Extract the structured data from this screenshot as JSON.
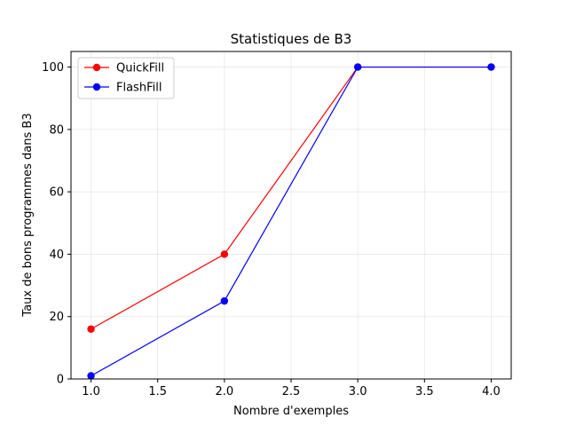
{
  "chart_data": {
    "type": "line",
    "title": "Statistiques de B3",
    "xlabel": "Nombre d'exemples",
    "ylabel": "Taux de bons programmes dans B3",
    "xlim": [
      0.85,
      4.15
    ],
    "ylim": [
      0,
      105
    ],
    "xticks": [
      1.0,
      1.5,
      2.0,
      2.5,
      3.0,
      3.5,
      4.0
    ],
    "xtick_labels": [
      "1.0",
      "1.5",
      "2.0",
      "2.5",
      "3.0",
      "3.5",
      "4.0"
    ],
    "yticks": [
      0,
      20,
      40,
      60,
      80,
      100
    ],
    "ytick_labels": [
      "0",
      "20",
      "40",
      "60",
      "80",
      "100"
    ],
    "grid": true,
    "legend_position": "top-left",
    "series": [
      {
        "name": "QuickFill",
        "color": "#ff0000",
        "x": [
          1,
          2,
          3,
          4
        ],
        "y": [
          16,
          40,
          100,
          100
        ]
      },
      {
        "name": "FlashFill",
        "color": "#0000ff",
        "x": [
          1,
          2,
          3,
          4
        ],
        "y": [
          1,
          25,
          100,
          100
        ]
      }
    ]
  }
}
